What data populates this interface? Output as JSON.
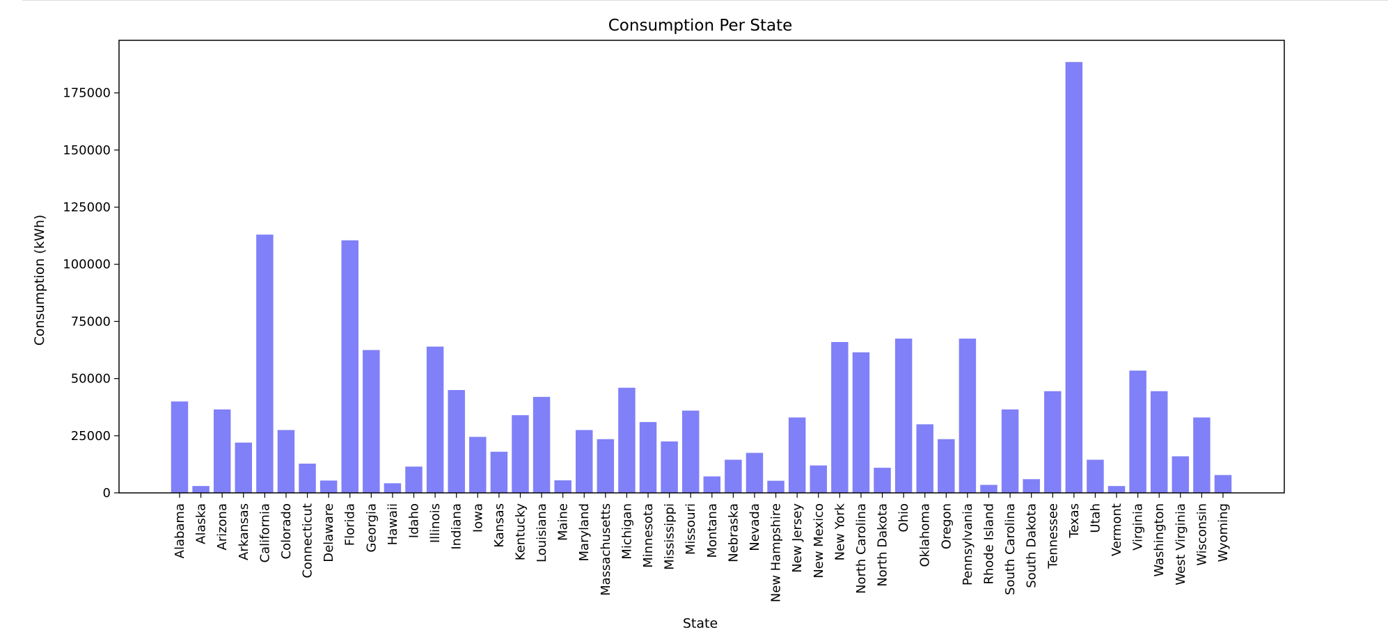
{
  "chart_data": {
    "type": "bar",
    "title": "Consumption Per State",
    "xlabel": "State",
    "ylabel": "Consumption (kWh)",
    "ylim": [
      0,
      198000
    ],
    "yticks": [
      0,
      25000,
      50000,
      75000,
      100000,
      125000,
      150000,
      175000
    ],
    "grid": false,
    "bar_color": "#8080f8",
    "categories": [
      "Alabama",
      "Alaska",
      "Arizona",
      "Arkansas",
      "California",
      "Colorado",
      "Connecticut",
      "Delaware",
      "Florida",
      "Georgia",
      "Hawaii",
      "Idaho",
      "Illinois",
      "Indiana",
      "Iowa",
      "Kansas",
      "Kentucky",
      "Louisiana",
      "Maine",
      "Maryland",
      "Massachusetts",
      "Michigan",
      "Minnesota",
      "Mississippi",
      "Missouri",
      "Montana",
      "Nebraska",
      "Nevada",
      "New Hampshire",
      "New Jersey",
      "New Mexico",
      "New York",
      "North Carolina",
      "North Dakota",
      "Ohio",
      "Oklahoma",
      "Oregon",
      "Pennsylvania",
      "Rhode Island",
      "South Carolina",
      "South Dakota",
      "Tennessee",
      "Texas",
      "Utah",
      "Vermont",
      "Virginia",
      "Washington",
      "West Virginia",
      "Wisconsin",
      "Wyoming"
    ],
    "values": [
      40000,
      3000,
      36500,
      22000,
      113000,
      27500,
      12800,
      5400,
      110500,
      62500,
      4200,
      11500,
      64000,
      45000,
      24500,
      18000,
      34000,
      42000,
      5500,
      27500,
      23500,
      46000,
      31000,
      22500,
      36000,
      7200,
      14500,
      17500,
      5300,
      33000,
      12000,
      66000,
      61500,
      11000,
      67500,
      30000,
      23500,
      67500,
      3500,
      36500,
      6000,
      44500,
      188500,
      14500,
      3000,
      53500,
      44500,
      16000,
      33000,
      7800
    ]
  }
}
